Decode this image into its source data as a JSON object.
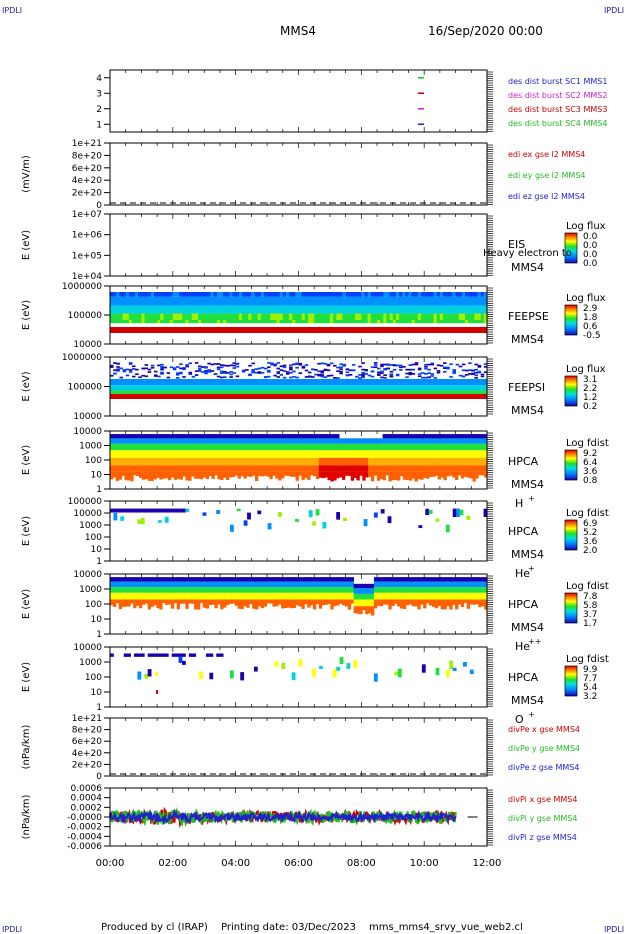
{
  "corner_tl": "IPDLI",
  "corner_tr": "IPDLI",
  "corner_bl": "IPDLI",
  "corner_br": "IPDLI",
  "header": {
    "spacecraft": "MMS4",
    "date": "16/Sep/2020 00:00"
  },
  "footer": {
    "produced_by": "Produced by cl (IRAP)",
    "printing_date": "Printing date: 03/Dec/2023",
    "script": "mms_mms4_srvy_vue_web2.cl"
  },
  "chart_data": [
    {
      "id": "burst",
      "type": "line",
      "yticks": [
        "1",
        "2",
        "3",
        "4"
      ],
      "ylim": [
        0.5,
        4.5
      ],
      "legend": [
        {
          "name": "des dist burst SC1 MMS1",
          "color": "#2222cc"
        },
        {
          "name": "des dist burst SC2 MMS2",
          "color": "#cc22cc"
        },
        {
          "name": "des dist burst SC3 MMS3",
          "color": "#cc0000"
        },
        {
          "name": "des dist burst SC4 MMS4",
          "color": "#22bb22"
        }
      ],
      "marks": [
        {
          "x": 9.9,
          "y": 4,
          "color": "#22bb22"
        },
        {
          "x": 9.9,
          "y": 3,
          "color": "#cc0000"
        },
        {
          "x": 9.9,
          "y": 2,
          "color": "#cc22cc"
        },
        {
          "x": 9.9,
          "y": 1,
          "color": "#2222cc"
        }
      ]
    },
    {
      "id": "edi",
      "type": "line",
      "ylabel": "(mV/m)",
      "yticks": [
        "1e+21",
        "8e+20",
        "6e+20",
        "4e+20",
        "2e+20",
        "0"
      ],
      "legend": [
        {
          "name": "edi ex gse l2 MMS4",
          "color": "#cc0000"
        },
        {
          "name": "edi ey gse l2 MMS4",
          "color": "#22bb22"
        },
        {
          "name": "edi ez gse l2 MMS4",
          "color": "#2222cc"
        }
      ]
    },
    {
      "id": "eis",
      "type": "heatmap",
      "ylabel": "E (eV)",
      "yticks": [
        "1e+07",
        "1e+06",
        "1e+05",
        "1e+04"
      ],
      "labels": [
        "EIS",
        "MMS4"
      ],
      "overlay": "Heavy electron to",
      "colorbar": {
        "title": "Log flux",
        "ticks": [
          "0.0",
          "0.0",
          "0.0",
          "0.0"
        ]
      }
    },
    {
      "id": "feepse",
      "type": "heatmap",
      "ylabel": "E (eV)",
      "yticks": [
        "1000000",
        "100000",
        "10000"
      ],
      "labels": [
        "FEEPSE",
        "MMS4"
      ],
      "colorbar": {
        "title": "Log flux",
        "ticks": [
          "2.9",
          "1.8",
          "0.6",
          "-0.5"
        ]
      }
    },
    {
      "id": "feepsi",
      "type": "heatmap",
      "ylabel": "E (eV)",
      "yticks": [
        "1000000",
        "100000",
        "10000"
      ],
      "labels": [
        "FEEPSI",
        "MMS4"
      ],
      "colorbar": {
        "title": "Log flux",
        "ticks": [
          "3.1",
          "2.2",
          "1.2",
          "0.2"
        ]
      }
    },
    {
      "id": "hpca_h",
      "type": "heatmap",
      "ylabel": "E (eV)",
      "yticks": [
        "10000",
        "1000",
        "100",
        "10",
        "1"
      ],
      "labels": [
        "HPCA",
        "MMS4"
      ],
      "species": "H",
      "charge": "+",
      "colorbar": {
        "title": "Log fdist",
        "ticks": [
          "9.2",
          "6.4",
          "3.6",
          "0.8"
        ]
      }
    },
    {
      "id": "hpca_he1",
      "type": "heatmap",
      "ylabel": "E (eV)",
      "yticks": [
        "100000",
        "10000",
        "1000",
        "100",
        "10",
        "1"
      ],
      "labels": [
        "HPCA",
        "MMS4"
      ],
      "species": "He",
      "charge": "+",
      "colorbar": {
        "title": "Log fdist",
        "ticks": [
          "6.9",
          "5.2",
          "3.6",
          "2.0"
        ]
      }
    },
    {
      "id": "hpca_he2",
      "type": "heatmap",
      "ylabel": "E (eV)",
      "yticks": [
        "10000",
        "1000",
        "100",
        "10",
        "1"
      ],
      "labels": [
        "HPCA",
        "MMS4"
      ],
      "species": "He",
      "charge": "++",
      "colorbar": {
        "title": "Log fdist",
        "ticks": [
          "7.8",
          "5.8",
          "3.7",
          "1.7"
        ]
      }
    },
    {
      "id": "hpca_o",
      "type": "heatmap",
      "ylabel": "E (eV)",
      "yticks": [
        "10000",
        "1000",
        "100",
        "10",
        "1"
      ],
      "labels": [
        "HPCA",
        "MMS4"
      ],
      "species": "O",
      "charge": "+",
      "colorbar": {
        "title": "Log fdist",
        "ticks": [
          "9.9",
          "7.7",
          "5.4",
          "3.2"
        ]
      }
    },
    {
      "id": "divpe",
      "type": "line",
      "ylabel": "(nPa/km)",
      "yticks": [
        "1e+21",
        "8e+20",
        "6e+20",
        "4e+20",
        "2e+20",
        "0"
      ],
      "legend": [
        {
          "name": "divPe x gse MMS4",
          "color": "#cc0000"
        },
        {
          "name": "divPe y gse MMS4",
          "color": "#22bb22"
        },
        {
          "name": "divPe z gse MMS4",
          "color": "#2222cc"
        }
      ]
    },
    {
      "id": "divpi",
      "type": "line",
      "ylabel": "(nPa/km)",
      "yticks": [
        "0.0006",
        "0.0004",
        "0.0002",
        "-0.0000",
        "-0.0002",
        "-0.0004",
        "-0.0006"
      ],
      "legend": [
        {
          "name": "divPi x gse MMS4",
          "color": "#cc0000"
        },
        {
          "name": "divPi y gse MMS4",
          "color": "#22bb22"
        },
        {
          "name": "divPi z gse MMS4",
          "color": "#2222cc"
        }
      ],
      "xticks": [
        "00:00",
        "02:00",
        "04:00",
        "06:00",
        "08:00",
        "10:00",
        "12:00"
      ],
      "xlim": [
        0,
        12
      ]
    }
  ]
}
